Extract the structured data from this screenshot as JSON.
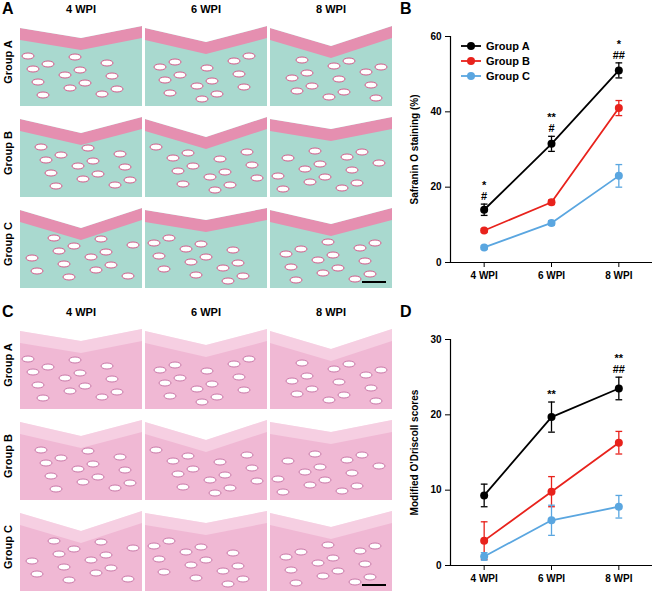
{
  "image_panels": [
    {
      "panel": "A",
      "columns": [
        "4 WPI",
        "6 WPI",
        "8 WPI"
      ],
      "rows": [
        "Group A",
        "Group B",
        "Group C"
      ]
    },
    {
      "panel": "C",
      "columns": [
        "4 WPI",
        "6 WPI",
        "8 WPI"
      ],
      "rows": [
        "Group A",
        "Group B",
        "Group C"
      ]
    }
  ],
  "chart_data": [
    {
      "panel": "B",
      "type": "line",
      "categories": [
        "4 WPI",
        "6 WPI",
        "8 WPI"
      ],
      "y_label": "Safranin O staining (%)",
      "ylim": [
        0,
        60
      ],
      "yticks": [
        0,
        20,
        40,
        60
      ],
      "legend": "top-left",
      "marker": "circle",
      "series": [
        {
          "name": "Group A",
          "color": "#000000",
          "values": [
            14,
            31.5,
            51
          ],
          "errors": [
            1.5,
            2,
            2
          ]
        },
        {
          "name": "Group B",
          "color": "#e8221c",
          "values": [
            8.5,
            16,
            41
          ],
          "errors": [
            0.5,
            0.6,
            2
          ]
        },
        {
          "name": "Group C",
          "color": "#5aa6e0",
          "values": [
            4,
            10.5,
            23
          ],
          "errors": [
            0.5,
            0.6,
            3
          ]
        }
      ],
      "annotations": [
        {
          "category": "4 WPI",
          "text": [
            "*",
            "#"
          ]
        },
        {
          "category": "6 WPI",
          "text": [
            "**",
            "#"
          ]
        },
        {
          "category": "8 WPI",
          "text": [
            "*",
            "##"
          ]
        }
      ]
    },
    {
      "panel": "D",
      "type": "line",
      "categories": [
        "4 WPI",
        "6 WPI",
        "8 WPI"
      ],
      "y_label": "Modified O'Driscoll scores",
      "ylim": [
        0,
        30
      ],
      "yticks": [
        0,
        10,
        20,
        30
      ],
      "marker": "circle",
      "series": [
        {
          "name": "Group A",
          "color": "#000000",
          "values": [
            9.3,
            19.7,
            23.5
          ],
          "errors": [
            1.5,
            2,
            1.5
          ]
        },
        {
          "name": "Group B",
          "color": "#e8221c",
          "values": [
            3.3,
            9.8,
            16.3
          ],
          "errors": [
            2.5,
            2,
            1.5
          ]
        },
        {
          "name": "Group C",
          "color": "#5aa6e0",
          "values": [
            1.2,
            6,
            7.8
          ],
          "errors": [
            0.5,
            2,
            1.5
          ]
        }
      ],
      "annotations": [
        {
          "category": "6 WPI",
          "text": [
            "**"
          ]
        },
        {
          "category": "8 WPI",
          "text": [
            "**",
            "##"
          ]
        }
      ]
    }
  ]
}
